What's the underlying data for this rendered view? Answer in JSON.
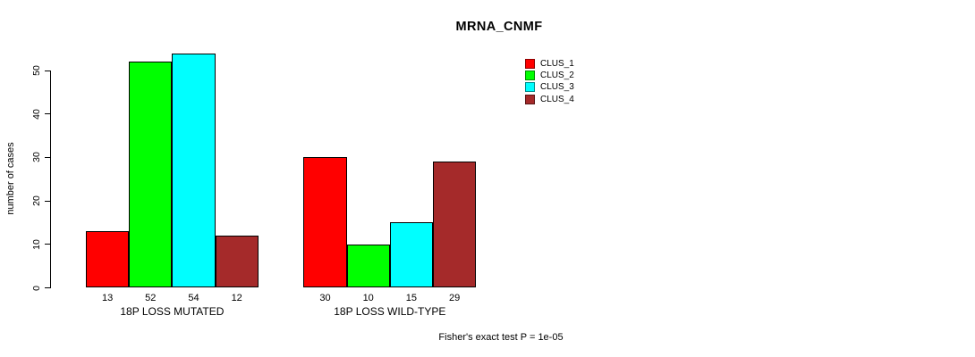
{
  "chart_data": {
    "type": "bar",
    "title": "MRNA_CNMF",
    "ylabel": "number of cases",
    "xlabel": "",
    "categories": [
      "18P LOSS MUTATED",
      "18P LOSS WILD-TYPE"
    ],
    "series": [
      {
        "name": "CLUS_1",
        "color": "#FF0000",
        "values": [
          13,
          30
        ]
      },
      {
        "name": "CLUS_2",
        "color": "#00FF00",
        "values": [
          52,
          10
        ]
      },
      {
        "name": "CLUS_3",
        "color": "#00FFFF",
        "values": [
          54,
          15
        ]
      },
      {
        "name": "CLUS_4",
        "color": "#A52A2A",
        "values": [
          12,
          29
        ]
      }
    ],
    "bar_value_labels": [
      [
        13,
        52,
        54,
        12
      ],
      [
        30,
        10,
        15,
        29
      ]
    ],
    "yticks": [
      0,
      10,
      20,
      30,
      40,
      50
    ],
    "ylim": [
      0,
      54
    ],
    "grid": false,
    "legend_position": "top-right-inside",
    "legend_entries": [
      "CLUS_1",
      "CLUS_2",
      "CLUS_3",
      "CLUS_4"
    ],
    "annotation": "Fisher's exact test P = 1e-05"
  },
  "colors": {
    "axis": "#000000",
    "text": "#000000",
    "background": "#FFFFFF"
  }
}
